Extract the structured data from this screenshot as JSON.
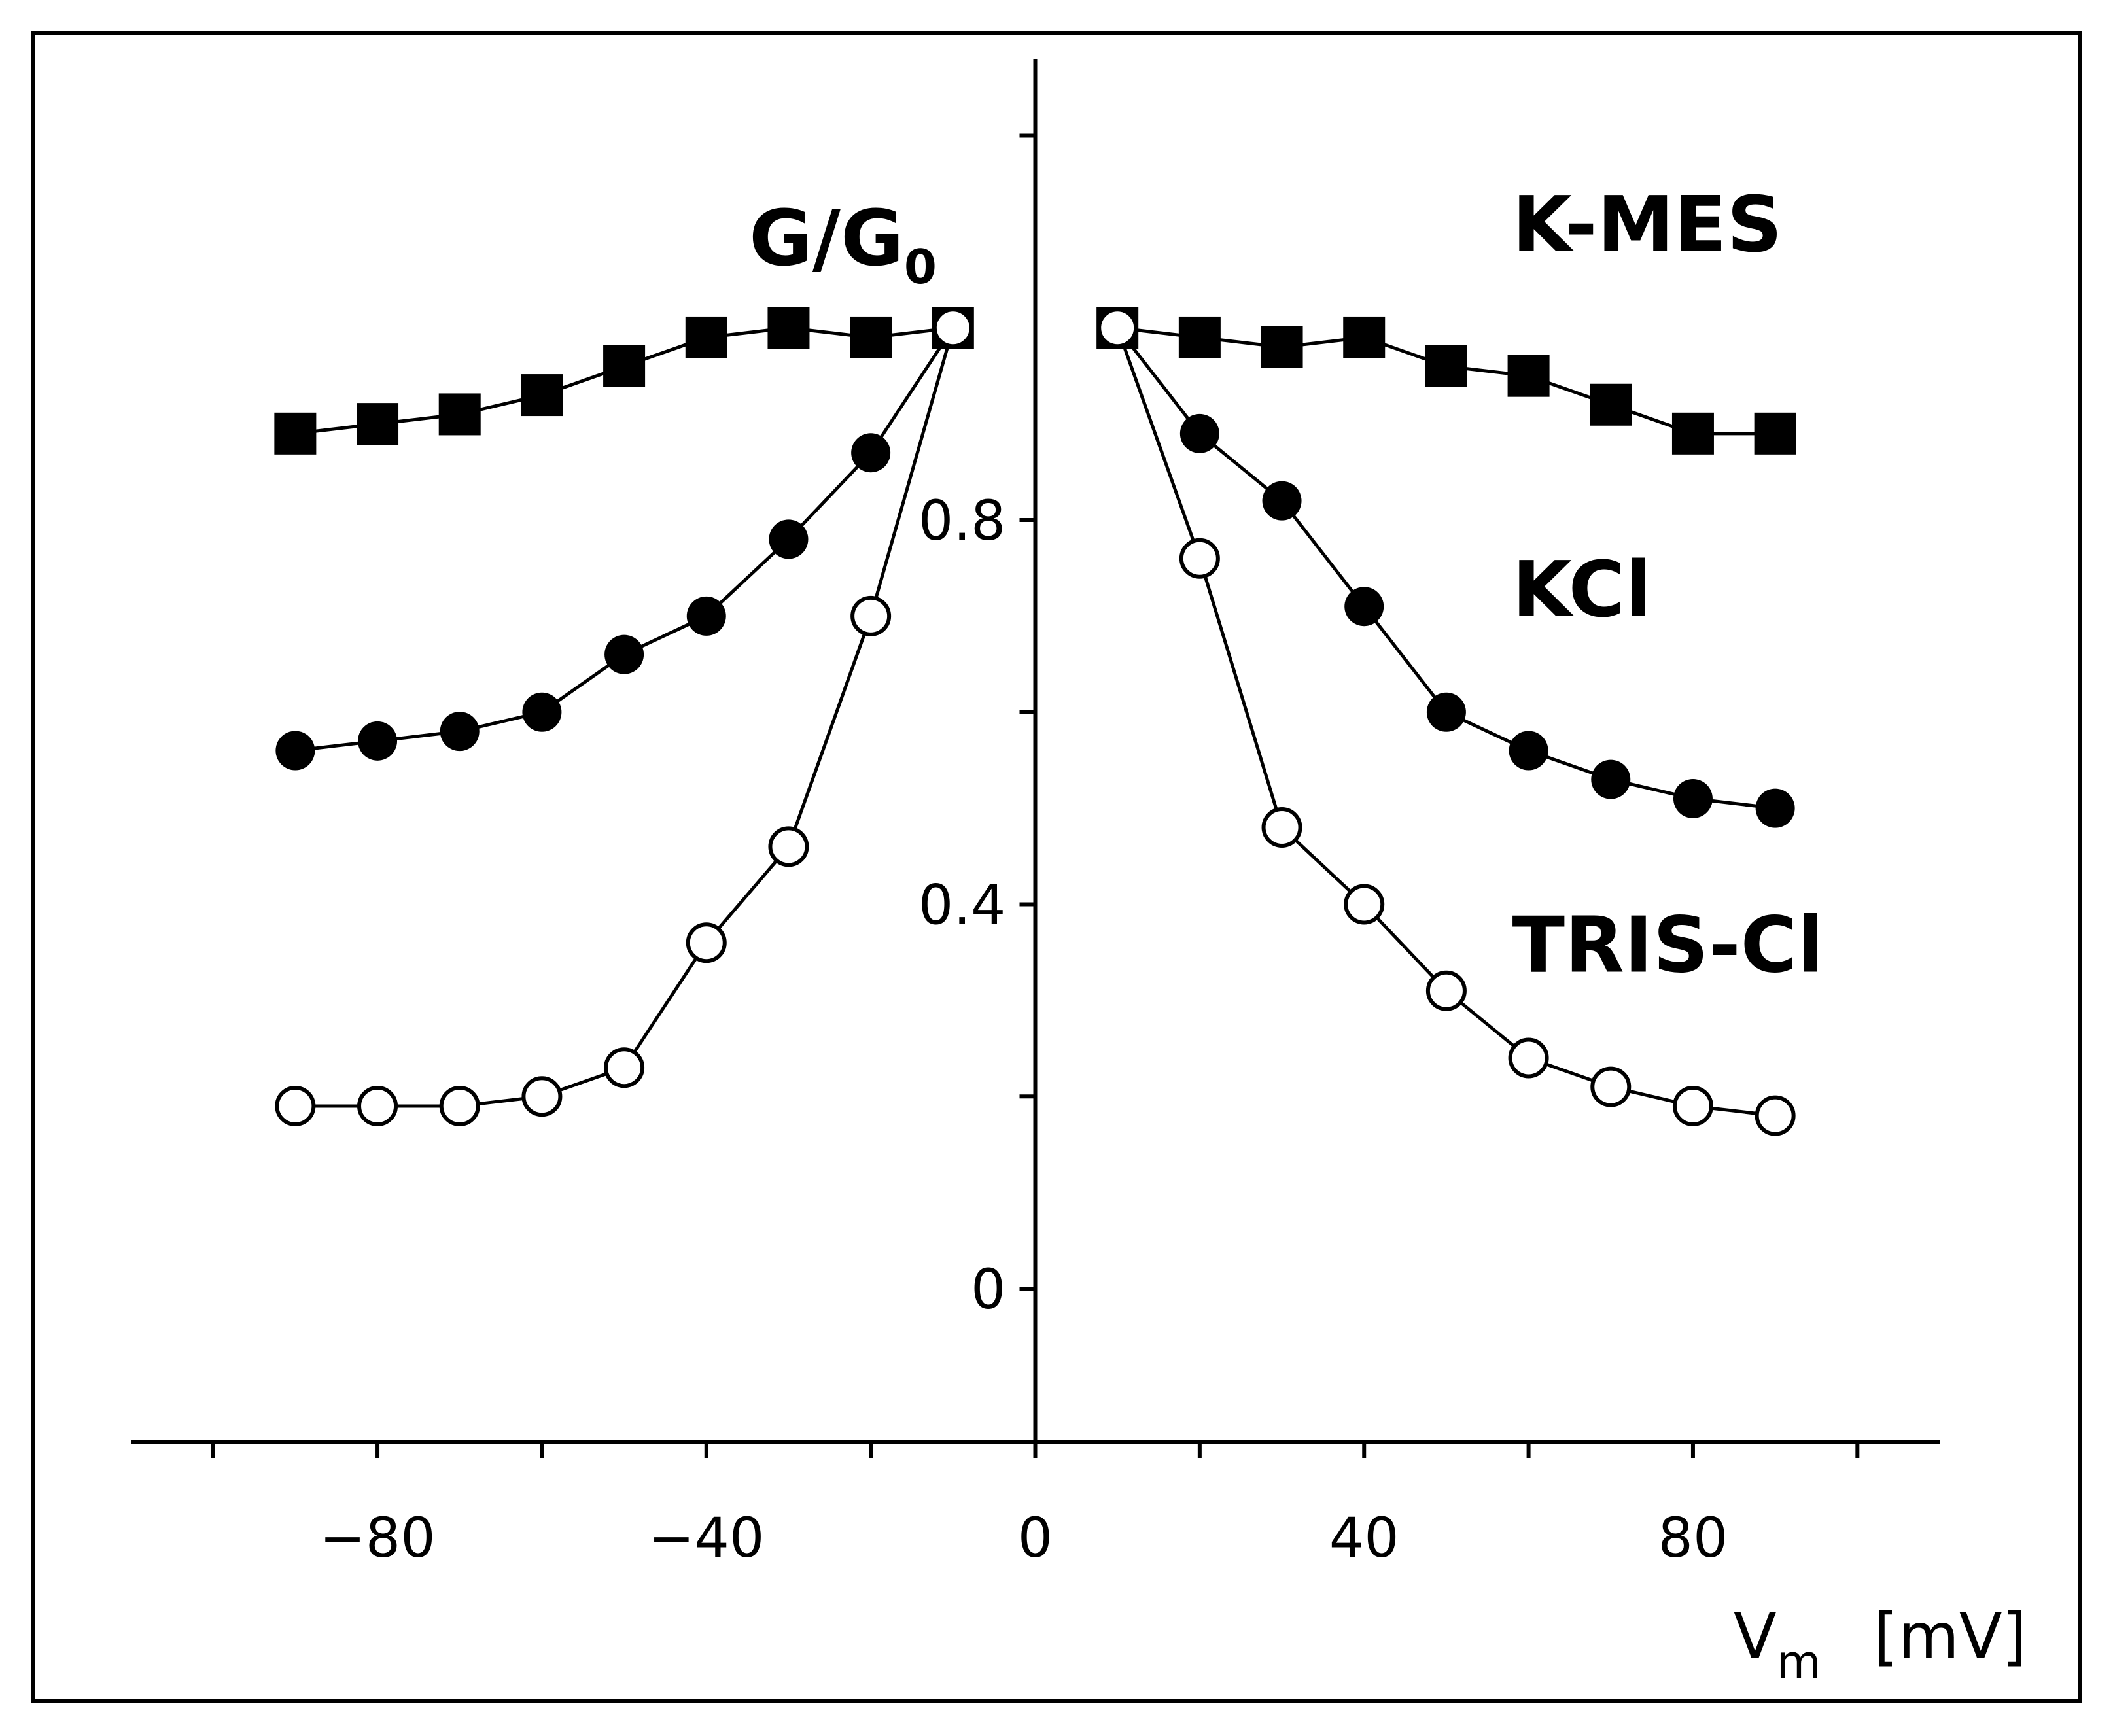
{
  "chart_data": {
    "type": "line",
    "title": "",
    "xlabel": "Vm [mV]",
    "xlabel_main": "V",
    "xlabel_sub": "m",
    "xlabel_unit": "[mV]",
    "ylabel": "G/G0",
    "ylabel_main": "G/G",
    "ylabel_sub": "0",
    "xlim": [
      -110,
      110
    ],
    "ylim": [
      -0.16,
      1.28
    ],
    "x_ticks": [
      -100,
      -80,
      -60,
      -40,
      -20,
      0,
      20,
      40,
      60,
      80,
      100
    ],
    "x_tick_labels": [
      {
        "value": -80,
        "label": "−80"
      },
      {
        "value": -40,
        "label": "−40"
      },
      {
        "value": 0,
        "label": "0"
      },
      {
        "value": 40,
        "label": "40"
      },
      {
        "value": 80,
        "label": "80"
      }
    ],
    "y_ticks": [
      0,
      0.4,
      0.8,
      1.2
    ],
    "y_minor_ticks": [
      0.2,
      0.6
    ],
    "y_tick_labels": [
      {
        "value": 0,
        "label": "0"
      },
      {
        "value": 0.4,
        "label": "0.4"
      },
      {
        "value": 0.8,
        "label": "0.8"
      }
    ],
    "grid": false,
    "series": [
      {
        "name": "K-MES",
        "marker": "filled-square",
        "label_anchor": {
          "x": 58,
          "y": 1.08
        },
        "left": {
          "x": [
            -90,
            -80,
            -70,
            -60,
            -50,
            -40,
            -30,
            -20,
            -10
          ],
          "y": [
            0.89,
            0.9,
            0.91,
            0.93,
            0.96,
            0.99,
            1.0,
            0.99,
            1.0
          ]
        },
        "right": {
          "x": [
            10,
            20,
            30,
            40,
            50,
            60,
            70,
            80,
            90
          ],
          "y": [
            1.0,
            0.99,
            0.98,
            0.99,
            0.96,
            0.95,
            0.92,
            0.89,
            0.89
          ]
        }
      },
      {
        "name": "KCl",
        "marker": "filled-circle",
        "label_anchor": {
          "x": 58,
          "y": 0.7
        },
        "left": {
          "x": [
            -90,
            -80,
            -70,
            -60,
            -50,
            -40,
            -30,
            -20,
            -10
          ],
          "y": [
            0.56,
            0.57,
            0.58,
            0.6,
            0.66,
            0.7,
            0.78,
            0.87,
            1.0
          ]
        },
        "right": {
          "x": [
            10,
            20,
            30,
            40,
            50,
            60,
            70,
            80,
            90
          ],
          "y": [
            1.0,
            0.89,
            0.82,
            0.71,
            0.6,
            0.56,
            0.53,
            0.51,
            0.5
          ]
        }
      },
      {
        "name": "TRIS-Cl",
        "marker": "open-circle",
        "label_anchor": {
          "x": 58,
          "y": 0.33
        },
        "left": {
          "x": [
            -90,
            -80,
            -70,
            -60,
            -50,
            -40,
            -30,
            -20,
            -10
          ],
          "y": [
            0.19,
            0.19,
            0.19,
            0.2,
            0.23,
            0.36,
            0.46,
            0.7,
            1.0
          ]
        },
        "right": {
          "x": [
            10,
            20,
            30,
            40,
            50,
            60,
            70,
            80,
            90
          ],
          "y": [
            1.0,
            0.76,
            0.48,
            0.4,
            0.31,
            0.24,
            0.21,
            0.19,
            0.18
          ]
        }
      }
    ]
  }
}
